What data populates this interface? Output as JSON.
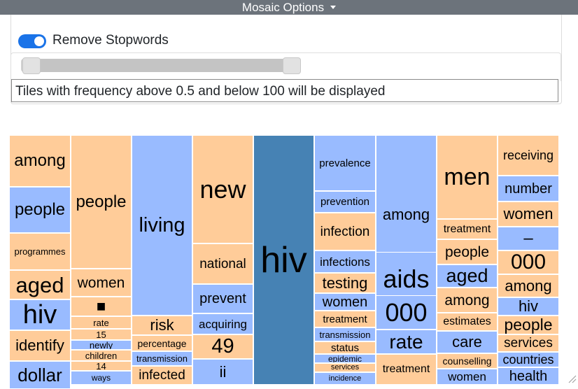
{
  "header": {
    "title": "Mosaic Options",
    "caret_icon": "chevron-down-icon"
  },
  "options": {
    "stopwords_label": "Remove Stopwords",
    "stopwords_enabled": true,
    "range_min": 0.5,
    "range_max": 100,
    "range_min_fraction": 0.0,
    "range_max_fraction": 1.0,
    "info_text": "Tiles with frequency above 0.5 and below 100  will be displayed"
  },
  "colors": {
    "orange": "#ffcc99",
    "blue": "#99bbff",
    "dark_blue": "#4682b4"
  },
  "tiles": [
    {
      "text": "among",
      "color": "orange"
    },
    {
      "text": "people",
      "color": "blue"
    },
    {
      "text": "programmes",
      "color": "orange"
    },
    {
      "text": "aged",
      "color": "orange"
    },
    {
      "text": "hiv",
      "color": "blue"
    },
    {
      "text": "identify",
      "color": "orange"
    },
    {
      "text": "dollar",
      "color": "blue"
    },
    {
      "text": "people",
      "color": "orange"
    },
    {
      "text": "women",
      "color": "orange"
    },
    {
      "text": "■",
      "color": "orange"
    },
    {
      "text": "rate",
      "color": "orange"
    },
    {
      "text": "15",
      "color": "orange"
    },
    {
      "text": "newly",
      "color": "blue"
    },
    {
      "text": "children",
      "color": "orange"
    },
    {
      "text": "14",
      "color": "orange"
    },
    {
      "text": "ways",
      "color": "blue"
    },
    {
      "text": "living",
      "color": "blue"
    },
    {
      "text": "risk",
      "color": "orange"
    },
    {
      "text": "percentage",
      "color": "orange"
    },
    {
      "text": "transmission",
      "color": "blue"
    },
    {
      "text": "infected",
      "color": "orange"
    },
    {
      "text": "new",
      "color": "orange"
    },
    {
      "text": "national",
      "color": "orange"
    },
    {
      "text": "prevent",
      "color": "blue"
    },
    {
      "text": "acquiring",
      "color": "blue"
    },
    {
      "text": "49",
      "color": "orange"
    },
    {
      "text": "ii",
      "color": "blue"
    },
    {
      "text": "hiv",
      "color": "dark_blue"
    },
    {
      "text": "prevalence",
      "color": "blue"
    },
    {
      "text": "prevention",
      "color": "blue"
    },
    {
      "text": "infection",
      "color": "orange"
    },
    {
      "text": "infections",
      "color": "blue"
    },
    {
      "text": "testing",
      "color": "orange"
    },
    {
      "text": "women",
      "color": "blue"
    },
    {
      "text": "treatment",
      "color": "orange"
    },
    {
      "text": "transmission",
      "color": "blue"
    },
    {
      "text": "status",
      "color": "orange"
    },
    {
      "text": "epidemic",
      "color": "blue"
    },
    {
      "text": "services",
      "color": "orange"
    },
    {
      "text": "incidence",
      "color": "blue"
    },
    {
      "text": "among",
      "color": "blue"
    },
    {
      "text": "aids",
      "color": "blue"
    },
    {
      "text": "000",
      "color": "blue"
    },
    {
      "text": "rate",
      "color": "blue"
    },
    {
      "text": "treatment",
      "color": "orange"
    },
    {
      "text": "men",
      "color": "orange"
    },
    {
      "text": "treatment",
      "color": "orange"
    },
    {
      "text": "people",
      "color": "orange"
    },
    {
      "text": "aged",
      "color": "blue"
    },
    {
      "text": "among",
      "color": "orange"
    },
    {
      "text": "estimates",
      "color": "orange"
    },
    {
      "text": "care",
      "color": "blue"
    },
    {
      "text": "counselling",
      "color": "orange"
    },
    {
      "text": "women",
      "color": "blue"
    },
    {
      "text": "receiving",
      "color": "orange"
    },
    {
      "text": "number",
      "color": "blue"
    },
    {
      "text": "women",
      "color": "orange"
    },
    {
      "text": "–",
      "color": "blue"
    },
    {
      "text": "000",
      "color": "orange"
    },
    {
      "text": "among",
      "color": "orange"
    },
    {
      "text": "hiv",
      "color": "blue"
    },
    {
      "text": "people",
      "color": "orange"
    },
    {
      "text": "services",
      "color": "orange"
    },
    {
      "text": "countries",
      "color": "blue"
    },
    {
      "text": "health",
      "color": "blue"
    }
  ]
}
